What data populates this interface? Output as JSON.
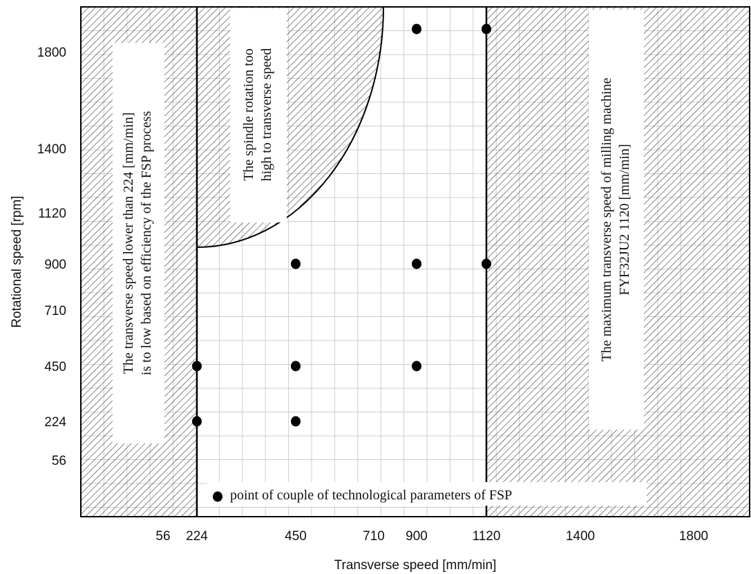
{
  "chart_data": {
    "type": "scatter",
    "title": "",
    "xlabel": "Transverse speed [mm/min]",
    "ylabel": "Rotational speed  [rpm]",
    "x_ticks": [
      "56",
      "224",
      "450",
      "710",
      "900",
      "1120",
      "1400",
      "1800"
    ],
    "y_ticks": [
      "1800",
      "1400",
      "1120",
      "900",
      "710",
      "450",
      "224",
      "56"
    ],
    "axis_scale": "non-uniform (ordinal tick levels)",
    "grid": true,
    "points": [
      {
        "x": 900,
        "y": 2000
      },
      {
        "x": 1120,
        "y": 2000
      },
      {
        "x": 450,
        "y": 900
      },
      {
        "x": 900,
        "y": 900
      },
      {
        "x": 1120,
        "y": 900
      },
      {
        "x": 224,
        "y": 450
      },
      {
        "x": 450,
        "y": 450
      },
      {
        "x": 900,
        "y": 450
      },
      {
        "x": 224,
        "y": 224
      },
      {
        "x": 450,
        "y": 224
      }
    ],
    "regions": [
      {
        "name": "low-transverse-zone",
        "text": [
          "The transverse speed lower than 224 [mm/min]",
          "is to low based on efficiency of the FSP process"
        ]
      },
      {
        "name": "high-rotation-zone",
        "text": [
          "The spindle rotation too",
          "high to transverse speed"
        ]
      },
      {
        "name": "max-transverse-zone",
        "text": [
          "The maximum transverse speed of milling machine",
          "FYF32JU2 1120 [mm/min]"
        ]
      }
    ],
    "legend": {
      "text": "point of couple of technological parameters of FSP",
      "position": "bottom-center"
    },
    "colors": {
      "points": "#000000",
      "hatch": "#444444",
      "grid": "#cccccc"
    }
  }
}
